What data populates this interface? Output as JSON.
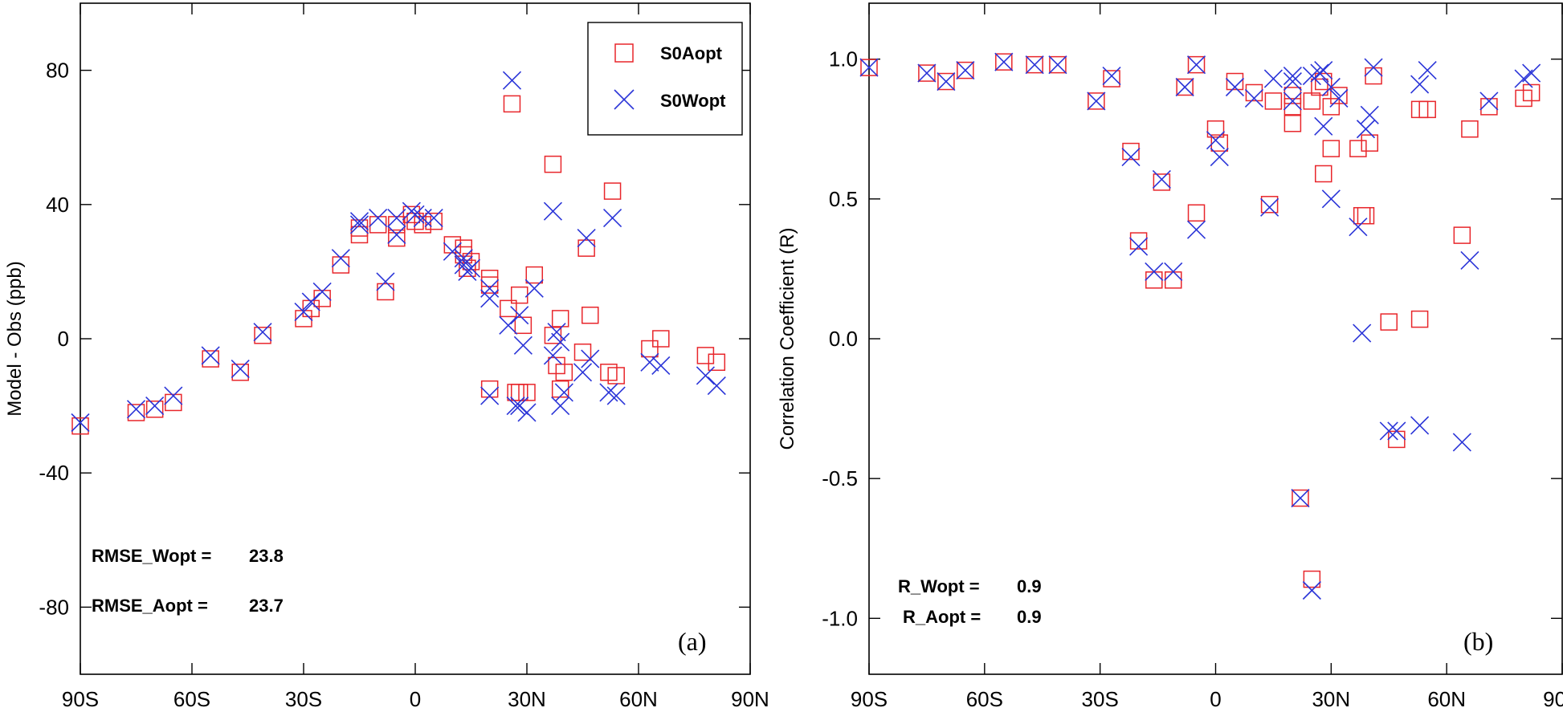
{
  "chart_data": [
    {
      "type": "scatter",
      "panel_label": "(a)",
      "ylabel": "Model - Obs (ppb)",
      "xlim": [
        -90,
        90
      ],
      "ylim": [
        -100,
        100
      ],
      "xticks": [
        -90,
        -60,
        -30,
        0,
        30,
        60,
        90
      ],
      "xtick_labels": [
        "90S",
        "60S",
        "30S",
        "0",
        "30N",
        "60N",
        "90N"
      ],
      "yticks": [
        -80,
        -40,
        0,
        40,
        80
      ],
      "ytick_labels": [
        "-80",
        "-40",
        "0",
        "40",
        "80"
      ],
      "legend": {
        "placement": "top-right",
        "entries": [
          "S0Aopt",
          "S0Wopt"
        ]
      },
      "annotations": [
        {
          "label": "RMSE_Wopt =",
          "value": "23.8"
        },
        {
          "label": "RMSE_Aopt =",
          "value": "23.7"
        }
      ],
      "series": [
        {
          "name": "S0Aopt",
          "marker": "square",
          "color": "#e8262b",
          "x": [
            -90,
            -75,
            -70,
            -65,
            -55,
            -47,
            -41,
            -30,
            -28,
            -25,
            -20,
            -15,
            -15,
            -10,
            -8,
            -5,
            -5,
            -1,
            0,
            2,
            5,
            10,
            13,
            13,
            14,
            15,
            20,
            20,
            20,
            25,
            26,
            27,
            28,
            28,
            29,
            30,
            32,
            37,
            37,
            38,
            39,
            39,
            40,
            45,
            46,
            47,
            52,
            53,
            54,
            63,
            66,
            78,
            81
          ],
          "y": [
            -26,
            -22,
            -21,
            -19,
            -6,
            -10,
            1,
            6,
            9,
            12,
            22,
            31,
            33,
            34,
            14,
            30,
            34,
            37,
            35,
            34,
            35,
            28,
            27,
            25,
            21,
            23,
            18,
            16,
            -15,
            9,
            70,
            -16,
            -16,
            13,
            4,
            -16,
            19,
            52,
            1,
            -8,
            6,
            -15,
            -10,
            -4,
            27,
            7,
            -10,
            44,
            -11,
            -3,
            0,
            -5,
            -7
          ]
        },
        {
          "name": "S0Wopt",
          "marker": "x",
          "color": "#2b35d8",
          "x": [
            -90,
            -75,
            -70,
            -65,
            -55,
            -47,
            -41,
            -30,
            -28,
            -25,
            -20,
            -15,
            -15,
            -10,
            -8,
            -5,
            -5,
            -1,
            0,
            2,
            5,
            10,
            13,
            13,
            14,
            15,
            20,
            20,
            20,
            25,
            26,
            27,
            28,
            28,
            29,
            30,
            32,
            37,
            37,
            38,
            39,
            39,
            40,
            45,
            46,
            47,
            52,
            53,
            54,
            63,
            66,
            78,
            81
          ],
          "y": [
            -25,
            -21,
            -20,
            -17,
            -5,
            -9,
            2,
            8,
            11,
            14,
            24,
            34,
            35,
            36,
            17,
            31,
            36,
            38,
            37,
            36,
            36,
            26,
            24,
            22,
            20,
            21,
            15,
            12,
            -17,
            4,
            77,
            -20,
            -20,
            7,
            -2,
            -22,
            15,
            38,
            -5,
            2,
            -1,
            -20,
            -16,
            -10,
            30,
            -6,
            -16,
            36,
            -17,
            -7,
            -8,
            -11,
            -14
          ]
        }
      ]
    },
    {
      "type": "scatter",
      "panel_label": "(b)",
      "ylabel": "Correlation Coefficient (R)",
      "xlim": [
        -90,
        90
      ],
      "ylim": [
        -1.2,
        1.2
      ],
      "xticks": [
        -90,
        -60,
        -30,
        0,
        30,
        60,
        90
      ],
      "xtick_labels": [
        "90S",
        "60S",
        "30S",
        "0",
        "30N",
        "60N",
        "90N"
      ],
      "yticks": [
        -1.0,
        -0.5,
        0.0,
        0.5,
        1.0
      ],
      "ytick_labels": [
        "-1.0",
        "-0.5",
        "0.0",
        "0.5",
        "1.0"
      ],
      "annotations": [
        {
          "label": "R_Wopt =",
          "value": "0.9"
        },
        {
          "label": "R_Aopt =",
          "value": "0.9"
        }
      ],
      "series": [
        {
          "name": "S0Aopt",
          "marker": "square",
          "color": "#e8262b",
          "x": [
            -90,
            -75,
            -70,
            -65,
            -55,
            -47,
            -41,
            -31,
            -27,
            -22,
            -20,
            -16,
            -14,
            -11,
            -8,
            -5,
            -5,
            0,
            1,
            5,
            10,
            14,
            15,
            20,
            20,
            20,
            22,
            25,
            25,
            27,
            28,
            28,
            30,
            30,
            32,
            37,
            38,
            39,
            40,
            41,
            45,
            47,
            53,
            53,
            55,
            64,
            66,
            71,
            80,
            82
          ],
          "y": [
            0.97,
            0.95,
            0.92,
            0.96,
            0.99,
            0.98,
            0.98,
            0.85,
            0.93,
            0.67,
            0.35,
            0.21,
            0.56,
            0.21,
            0.9,
            0.45,
            0.98,
            0.75,
            0.7,
            0.92,
            0.88,
            0.48,
            0.85,
            0.83,
            0.77,
            0.87,
            -0.57,
            0.85,
            -0.86,
            0.9,
            0.59,
            0.92,
            0.68,
            0.83,
            0.87,
            0.68,
            0.44,
            0.44,
            0.7,
            0.94,
            0.06,
            -0.36,
            0.82,
            0.07,
            0.82,
            0.37,
            0.75,
            0.83,
            0.86,
            0.88
          ]
        },
        {
          "name": "S0Wopt",
          "marker": "x",
          "color": "#2b35d8",
          "x": [
            -90,
            -75,
            -70,
            -65,
            -55,
            -47,
            -41,
            -31,
            -27,
            -22,
            -20,
            -16,
            -14,
            -11,
            -8,
            -5,
            -5,
            0,
            1,
            5,
            10,
            14,
            15,
            20,
            20,
            20,
            22,
            25,
            25,
            27,
            28,
            28,
            30,
            30,
            32,
            37,
            38,
            39,
            40,
            41,
            45,
            47,
            53,
            53,
            55,
            64,
            66,
            71,
            80,
            82
          ],
          "y": [
            0.97,
            0.95,
            0.92,
            0.96,
            0.99,
            0.98,
            0.98,
            0.85,
            0.94,
            0.65,
            0.33,
            0.24,
            0.57,
            0.24,
            0.9,
            0.39,
            0.98,
            0.71,
            0.65,
            0.9,
            0.86,
            0.47,
            0.93,
            0.92,
            0.85,
            0.94,
            -0.57,
            0.94,
            -0.9,
            0.95,
            0.76,
            0.96,
            0.5,
            0.9,
            0.86,
            0.4,
            0.02,
            0.75,
            0.8,
            0.97,
            -0.33,
            -0.33,
            0.91,
            -0.31,
            0.96,
            -0.37,
            0.28,
            0.85,
            0.93,
            0.95
          ]
        }
      ]
    }
  ]
}
